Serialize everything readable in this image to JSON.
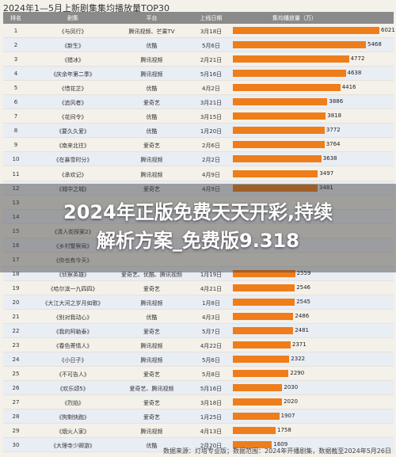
{
  "chart_data": {
    "type": "bar",
    "title": "2024年1—5月上新剧集集均播放量TOP30",
    "columns": [
      "排名",
      "剧集",
      "平台",
      "上线日期",
      "集均播放量（万）"
    ],
    "rows": [
      {
        "rank": "1",
        "drama": "《与凤行》",
        "platform": "腾讯视频、芒果TV",
        "date": "3月18日",
        "value": 6021
      },
      {
        "rank": "2",
        "drama": "《新生》",
        "platform": "优酷",
        "date": "5月6日",
        "value": 5468
      },
      {
        "rank": "3",
        "drama": "《猎冰》",
        "platform": "腾讯视频",
        "date": "2月21日",
        "value": 4772
      },
      {
        "rank": "4",
        "drama": "《庆余年第二季》",
        "platform": "腾讯视频",
        "date": "5月16日",
        "value": 4638
      },
      {
        "rank": "5",
        "drama": "《惜花芷》",
        "platform": "优酷",
        "date": "4月2日",
        "value": 4416
      },
      {
        "rank": "6",
        "drama": "《追风者》",
        "platform": "爱奇艺",
        "date": "3月21日",
        "value": 3886
      },
      {
        "rank": "7",
        "drama": "《花间令》",
        "platform": "优酷",
        "date": "3月15日",
        "value": 3818
      },
      {
        "rank": "8",
        "drama": "《要久久爱》",
        "platform": "优酷",
        "date": "1月20日",
        "value": 3772
      },
      {
        "rank": "9",
        "drama": "《南来北往》",
        "platform": "爱奇艺",
        "date": "2月6日",
        "value": 3764
      },
      {
        "rank": "10",
        "drama": "《在暴雪时分》",
        "platform": "腾讯视频",
        "date": "2月2日",
        "value": 3638
      },
      {
        "rank": "11",
        "drama": "《承欢记》",
        "platform": "腾讯视频",
        "date": "4月9日",
        "value": 3497
      },
      {
        "rank": "12",
        "drama": "《城中之城》",
        "platform": "爱奇艺",
        "date": "4月9日",
        "value": 3481
      },
      {
        "rank": "13",
        "drama": "",
        "platform": "",
        "date": "",
        "value": null
      },
      {
        "rank": "14",
        "drama": "",
        "platform": "",
        "date": "",
        "value": null
      },
      {
        "rank": "15",
        "drama": "《清人街探案2》",
        "platform": "",
        "date": "",
        "value": null
      },
      {
        "rank": "16",
        "drama": "《乡村警察局》",
        "platform": "",
        "date": "",
        "value": null
      },
      {
        "rank": "17",
        "drama": "《你也有今天》",
        "platform": "",
        "date": "",
        "value": null
      },
      {
        "rank": "18",
        "drama": "《侦察英雄》",
        "platform": "爱奇艺、优酷、腾讯视频",
        "date": "1月19日",
        "value": 2559
      },
      {
        "rank": "19",
        "drama": "《哈尔滨一九四四》",
        "platform": "爱奇艺",
        "date": "4月21日",
        "value": 2546
      },
      {
        "rank": "20",
        "drama": "《大江大河之岁月如歌》",
        "platform": "腾讯视频",
        "date": "1月8日",
        "value": 2545
      },
      {
        "rank": "21",
        "drama": "《别对我动心》",
        "platform": "优酷",
        "date": "4月3日",
        "value": 2486
      },
      {
        "rank": "22",
        "drama": "《我的阿勒泰》",
        "platform": "爱奇艺",
        "date": "5月7日",
        "value": 2481
      },
      {
        "rank": "23",
        "drama": "《春色寄情人》",
        "platform": "腾讯视频",
        "date": "4月22日",
        "value": 2371
      },
      {
        "rank": "24",
        "drama": "《小日子》",
        "platform": "腾讯视频",
        "date": "5月6日",
        "value": 2322
      },
      {
        "rank": "25",
        "drama": "《不可告人》",
        "platform": "爱奇艺",
        "date": "5月8日",
        "value": 2290
      },
      {
        "rank": "26",
        "drama": "《欢乐颂5》",
        "platform": "爱奇艺、腾讯视频",
        "date": "5月16日",
        "value": 2030
      },
      {
        "rank": "27",
        "drama": "《烈焰》",
        "platform": "爱奇艺",
        "date": "3月18日",
        "value": 2020
      },
      {
        "rank": "28",
        "drama": "《狗剩快跑》",
        "platform": "爱奇艺",
        "date": "1月25日",
        "value": 1907
      },
      {
        "rank": "29",
        "drama": "《烟火人家》",
        "platform": "腾讯视频",
        "date": "4月13日",
        "value": 1758
      },
      {
        "rank": "30",
        "drama": "《大理寺少卿游》",
        "platform": "优酷",
        "date": "2月20日",
        "value": 1609
      }
    ],
    "max_value": 6021
  },
  "overlay": {
    "headline_line1": "2024年正版免费天天开彩,持续",
    "headline_line2": "解析方案_免费版9.318"
  },
  "footer": "数据来源：灯塔专业版；数据范围：2024年开播剧集，数据截至2024年5月26日",
  "colors": {
    "bar": "#ee7d1a",
    "header": "#8a8a8a",
    "alt_row": "#e9edf4"
  }
}
